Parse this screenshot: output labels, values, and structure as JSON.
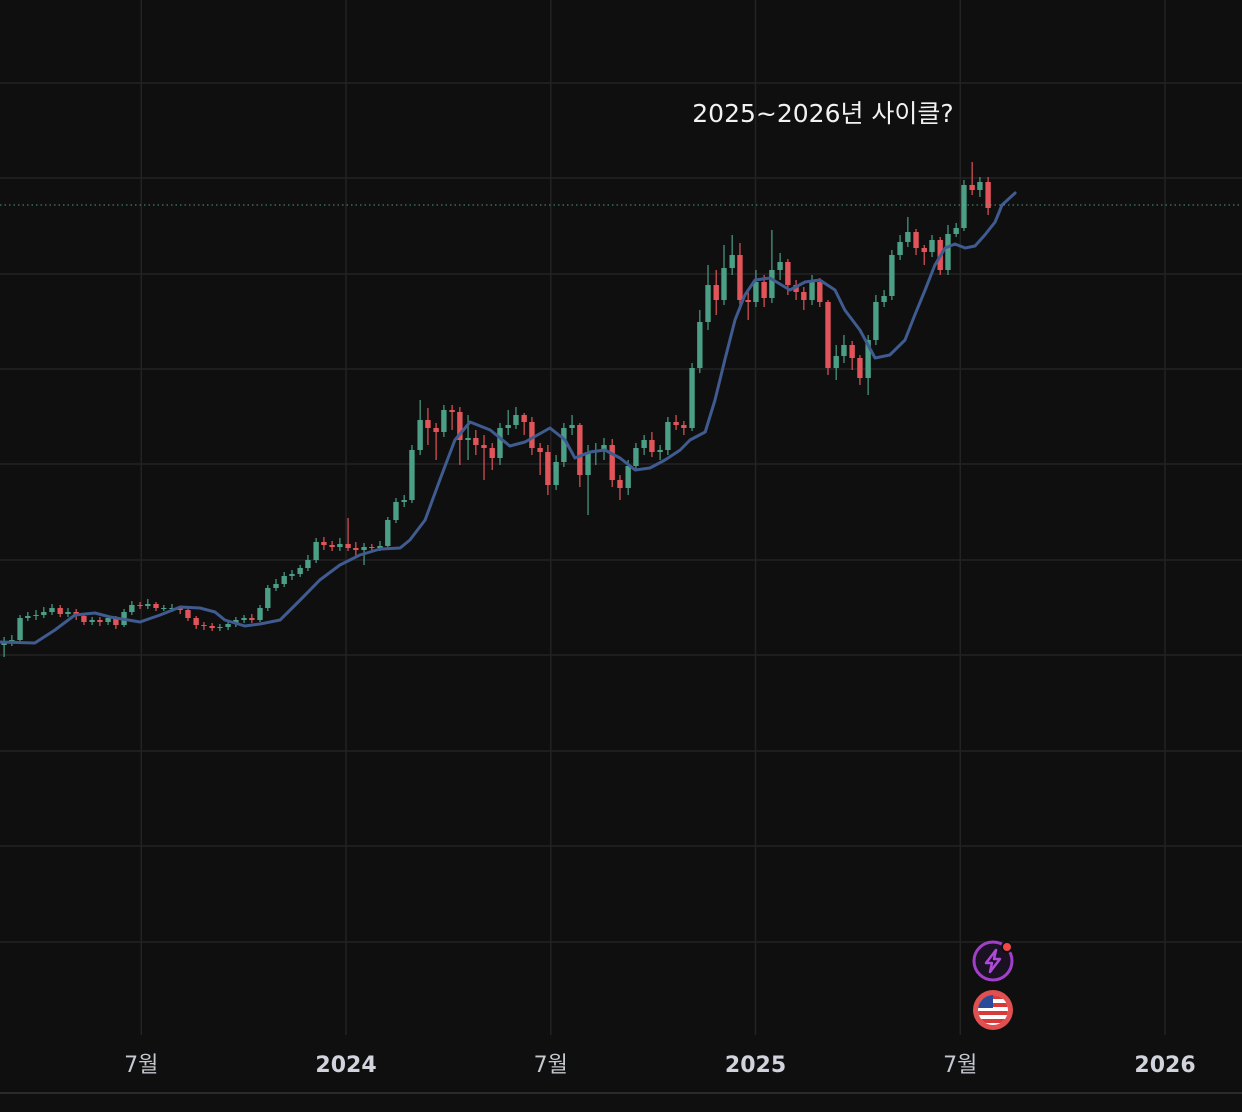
{
  "chart_data": {
    "type": "candlestick",
    "annotation": "2025~2026년 사이클?",
    "xlim": [
      2023.155,
      2026.188
    ],
    "xticks": [
      {
        "value": 2023.5,
        "label": "7월"
      },
      2024,
      {
        "value": 2024.5,
        "label": "7월"
      },
      2025,
      {
        "value": 2025.5,
        "label": "7월"
      },
      2026
    ],
    "ylim": [
      0,
      1035
    ],
    "grid": true,
    "up_color": "#4a9f86",
    "down_color": "#e0545a",
    "candles": {
      "x": [
        2023.165,
        2023.184,
        2023.204,
        2023.223,
        2023.243,
        2023.262,
        2023.282,
        2023.302,
        2023.321,
        2023.341,
        2023.36,
        2023.38,
        2023.399,
        2023.419,
        2023.438,
        2023.458,
        2023.477,
        2023.497,
        2023.516,
        2023.536,
        2023.555,
        2023.575,
        2023.595,
        2023.614,
        2023.634,
        2023.653,
        2023.673,
        2023.692,
        2023.712,
        2023.731,
        2023.751,
        2023.77,
        2023.79,
        2023.809,
        2023.829,
        2023.849,
        2023.868,
        2023.888,
        2023.907,
        2023.927,
        2023.946,
        2023.966,
        2023.985,
        2024.005,
        2024.024,
        2024.044,
        2024.063,
        2024.083,
        2024.102,
        2024.122,
        2024.142,
        2024.161,
        2024.181,
        2024.2,
        2024.22,
        2024.239,
        2024.259,
        2024.278,
        2024.298,
        2024.317,
        2024.337,
        2024.357,
        2024.376,
        2024.396,
        2024.415,
        2024.435,
        2024.454,
        2024.474,
        2024.493,
        2024.513,
        2024.532,
        2024.552,
        2024.571,
        2024.591,
        2024.61,
        2024.63,
        2024.65,
        2024.669,
        2024.689,
        2024.708,
        2024.728,
        2024.747,
        2024.767,
        2024.786,
        2024.806,
        2024.825,
        2024.845,
        2024.864,
        2024.884,
        2024.904,
        2024.923,
        2024.943,
        2024.962,
        2024.982,
        2025.001,
        2025.021,
        2025.04,
        2025.06,
        2025.079,
        2025.099,
        2025.118,
        2025.138,
        2025.157,
        2025.177,
        2025.197,
        2025.216,
        2025.236,
        2025.255,
        2025.275,
        2025.294,
        2025.314,
        2025.333,
        2025.353,
        2025.372,
        2025.392,
        2025.412,
        2025.431,
        2025.451,
        2025.47,
        2025.49,
        2025.509,
        2025.529,
        2025.548,
        2025.568
      ],
      "open": [
        390,
        393,
        395,
        417,
        419,
        420,
        423,
        427,
        421,
        423,
        419,
        413,
        415,
        413,
        417,
        410,
        423,
        430,
        429,
        431,
        427,
        427,
        427,
        425,
        417,
        410,
        409,
        407,
        408,
        411,
        415,
        417,
        415,
        427,
        447,
        451,
        459,
        461,
        467,
        475,
        493,
        490,
        488,
        491,
        487,
        485,
        488,
        487,
        489,
        515,
        533,
        535,
        585,
        615,
        607,
        603,
        625,
        623,
        595,
        597,
        590,
        587,
        577,
        607,
        610,
        620,
        613,
        587,
        583,
        550,
        573,
        607,
        610,
        560,
        583,
        585,
        590,
        555,
        547,
        569,
        587,
        595,
        583,
        585,
        613,
        610,
        607,
        667,
        713,
        750,
        735,
        767,
        780,
        735,
        733,
        753,
        737,
        765,
        773,
        750,
        743,
        735,
        753,
        733,
        667,
        679,
        690,
        677,
        657,
        695,
        733,
        739,
        780,
        793,
        803,
        787,
        783,
        795,
        765,
        801,
        807,
        850,
        845,
        853
      ],
      "high": [
        398,
        400,
        420,
        423,
        425,
        428,
        431,
        430,
        427,
        426,
        421,
        418,
        418,
        420,
        419,
        426,
        434,
        433,
        436,
        433,
        430,
        431,
        429,
        427,
        419,
        413,
        412,
        411,
        414,
        418,
        420,
        421,
        430,
        450,
        456,
        463,
        465,
        470,
        480,
        497,
        498,
        494,
        497,
        517,
        493,
        492,
        491,
        494,
        518,
        537,
        540,
        590,
        635,
        627,
        612,
        630,
        630,
        628,
        620,
        605,
        600,
        592,
        612,
        625,
        628,
        622,
        618,
        592,
        590,
        580,
        612,
        620,
        612,
        590,
        592,
        597,
        596,
        560,
        575,
        592,
        600,
        603,
        590,
        618,
        620,
        614,
        672,
        725,
        770,
        765,
        790,
        800,
        792,
        745,
        765,
        760,
        805,
        782,
        776,
        755,
        748,
        760,
        757,
        735,
        690,
        700,
        694,
        680,
        700,
        740,
        745,
        785,
        800,
        818,
        806,
        790,
        800,
        798,
        810,
        812,
        855,
        873,
        858,
        858
      ],
      "low": [
        378,
        389,
        392,
        414,
        415,
        417,
        420,
        418,
        418,
        415,
        410,
        410,
        409,
        410,
        406,
        408,
        420,
        426,
        426,
        424,
        424,
        423,
        421,
        414,
        406,
        405,
        404,
        404,
        405,
        408,
        412,
        412,
        413,
        424,
        444,
        448,
        455,
        458,
        464,
        472,
        485,
        484,
        484,
        484,
        478,
        470,
        483,
        484,
        486,
        512,
        528,
        532,
        580,
        590,
        575,
        598,
        605,
        570,
        575,
        580,
        555,
        565,
        570,
        600,
        606,
        600,
        580,
        560,
        540,
        545,
        568,
        600,
        548,
        520,
        570,
        575,
        548,
        535,
        540,
        565,
        580,
        578,
        575,
        580,
        605,
        600,
        604,
        662,
        705,
        720,
        730,
        760,
        725,
        715,
        728,
        728,
        732,
        755,
        740,
        735,
        725,
        730,
        728,
        660,
        655,
        672,
        665,
        650,
        640,
        690,
        728,
        735,
        775,
        788,
        780,
        770,
        778,
        760,
        760,
        798,
        804,
        840,
        838,
        820
      ],
      "close": [
        393,
        395,
        417,
        419,
        420,
        423,
        427,
        421,
        423,
        419,
        413,
        415,
        413,
        417,
        410,
        423,
        430,
        429,
        431,
        427,
        427,
        427,
        425,
        417,
        410,
        409,
        407,
        408,
        411,
        415,
        417,
        415,
        427,
        447,
        451,
        459,
        461,
        467,
        475,
        493,
        490,
        488,
        491,
        487,
        485,
        488,
        487,
        489,
        515,
        533,
        535,
        585,
        615,
        607,
        603,
        625,
        623,
        595,
        597,
        590,
        587,
        577,
        607,
        610,
        620,
        613,
        587,
        583,
        550,
        573,
        607,
        610,
        560,
        583,
        585,
        590,
        555,
        547,
        569,
        587,
        595,
        583,
        585,
        613,
        610,
        607,
        667,
        713,
        750,
        735,
        767,
        780,
        735,
        733,
        753,
        737,
        765,
        773,
        750,
        743,
        735,
        753,
        733,
        667,
        679,
        690,
        677,
        657,
        695,
        733,
        739,
        780,
        793,
        803,
        787,
        783,
        795,
        765,
        801,
        807,
        850,
        845,
        853,
        827
      ]
    },
    "ma": {
      "color": "#3f5b8f",
      "x": [
        2023.155,
        2023.24,
        2023.289,
        2023.338,
        2023.387,
        2023.424,
        2023.497,
        2023.546,
        2023.595,
        2023.643,
        2023.68,
        2023.704,
        2023.753,
        2023.79,
        2023.839,
        2023.888,
        2023.936,
        2023.985,
        2024.034,
        2024.083,
        2024.132,
        2024.156,
        2024.193,
        2024.229,
        2024.266,
        2024.303,
        2024.352,
        2024.4,
        2024.437,
        2024.498,
        2024.535,
        2024.559,
        2024.596,
        2024.632,
        2024.669,
        2024.706,
        2024.742,
        2024.779,
        2024.816,
        2024.84,
        2024.877,
        2024.901,
        2024.925,
        2024.95,
        2024.974,
        2024.999,
        2025.035,
        2025.084,
        2025.121,
        2025.157,
        2025.194,
        2025.218,
        2025.255,
        2025.292,
        2025.328,
        2025.365,
        2025.389,
        2025.414,
        2025.438,
        2025.463,
        2025.487,
        2025.512,
        2025.536,
        2025.56,
        2025.585,
        2025.602,
        2025.634
      ],
      "values": [
        393,
        392,
        405,
        420,
        422,
        418,
        413,
        420,
        428,
        427,
        423,
        415,
        409,
        411,
        415,
        435,
        455,
        470,
        480,
        486,
        487,
        495,
        515,
        555,
        595,
        613,
        605,
        589,
        593,
        607,
        595,
        577,
        583,
        585,
        577,
        565,
        567,
        575,
        585,
        595,
        603,
        635,
        675,
        715,
        740,
        755,
        757,
        745,
        753,
        755,
        745,
        725,
        705,
        677,
        680,
        695,
        720,
        745,
        770,
        787,
        791,
        787,
        789,
        800,
        813,
        830,
        842
      ]
    },
    "price_line": {
      "value": 830,
      "color": "#5fb8a0"
    }
  }
}
